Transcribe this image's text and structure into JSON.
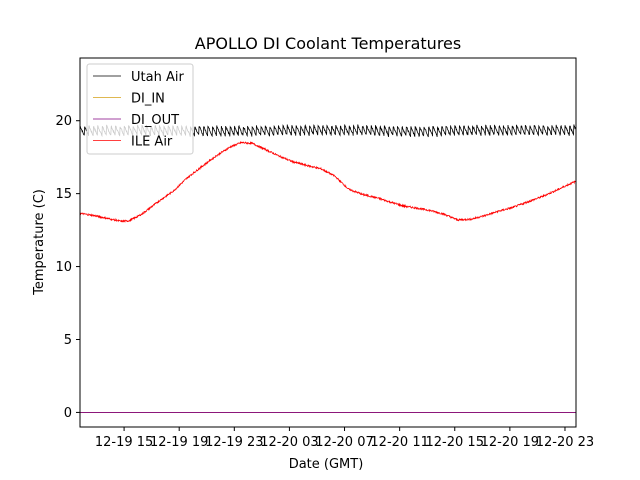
{
  "chart_data": {
    "type": "line",
    "title": "APOLLO DI Coolant Temperatures",
    "xlabel": "Date (GMT)",
    "ylabel": "Temperature (C)",
    "x_unit": "hours since 12-19 00:00 GMT",
    "xlim": [
      11.8,
      47.8
    ],
    "ylim": [
      -1.0,
      24.3
    ],
    "x_ticks": [
      {
        "value": 15,
        "label": "12-19 15"
      },
      {
        "value": 19,
        "label": "12-19 19"
      },
      {
        "value": 23,
        "label": "12-19 23"
      },
      {
        "value": 27,
        "label": "12-20 03"
      },
      {
        "value": 31,
        "label": "12-20 07"
      },
      {
        "value": 35,
        "label": "12-20 11"
      },
      {
        "value": 39,
        "label": "12-20 15"
      },
      {
        "value": 43,
        "label": "12-20 19"
      },
      {
        "value": 47,
        "label": "12-20 23"
      }
    ],
    "y_ticks": [
      {
        "value": 0,
        "label": "0"
      },
      {
        "value": 5,
        "label": "5"
      },
      {
        "value": 10,
        "label": "10"
      },
      {
        "value": 15,
        "label": "15"
      },
      {
        "value": 20,
        "label": "20"
      }
    ],
    "legend_position": "top-left",
    "series": [
      {
        "name": "Utah Air",
        "color": "#000000",
        "style": "oscillating",
        "amplitude": 0.7,
        "period": 0.32,
        "x": [
          11.8,
          16,
          20,
          24,
          28,
          32,
          36,
          40,
          44,
          47.8
        ],
        "y": [
          19.3,
          19.35,
          19.3,
          19.3,
          19.35,
          19.35,
          19.25,
          19.35,
          19.35,
          19.35
        ]
      },
      {
        "name": "DI_IN",
        "color": "#d4a017",
        "x": [
          11.8,
          47.8
        ],
        "y": [
          0.0,
          0.0
        ]
      },
      {
        "name": "DI_OUT",
        "color": "#800080",
        "x": [
          11.8,
          47.8
        ],
        "y": [
          0.0,
          0.0
        ]
      },
      {
        "name": "ILE Air",
        "color": "#ff0000",
        "x": [
          11.8,
          12.8,
          13.8,
          14.8,
          15.4,
          16.3,
          17.4,
          18.6,
          19.6,
          20.7,
          21.7,
          22.7,
          23.5,
          24.3,
          25.2,
          26.2,
          27.2,
          28.2,
          29.3,
          30.3,
          31.3,
          32.3,
          33.4,
          34.4,
          35.3,
          36.3,
          37.2,
          38.2,
          39.2,
          40.2,
          41.2,
          42.2,
          43.2,
          44.2,
          45.2,
          46.2,
          47.2,
          47.8
        ],
        "y": [
          13.65,
          13.5,
          13.3,
          13.1,
          13.15,
          13.6,
          14.4,
          15.2,
          16.1,
          16.9,
          17.6,
          18.2,
          18.5,
          18.45,
          18.05,
          17.6,
          17.2,
          16.95,
          16.7,
          16.2,
          15.3,
          14.95,
          14.7,
          14.4,
          14.15,
          14.0,
          13.85,
          13.6,
          13.2,
          13.25,
          13.5,
          13.8,
          14.05,
          14.4,
          14.75,
          15.15,
          15.6,
          15.85
        ]
      }
    ]
  }
}
